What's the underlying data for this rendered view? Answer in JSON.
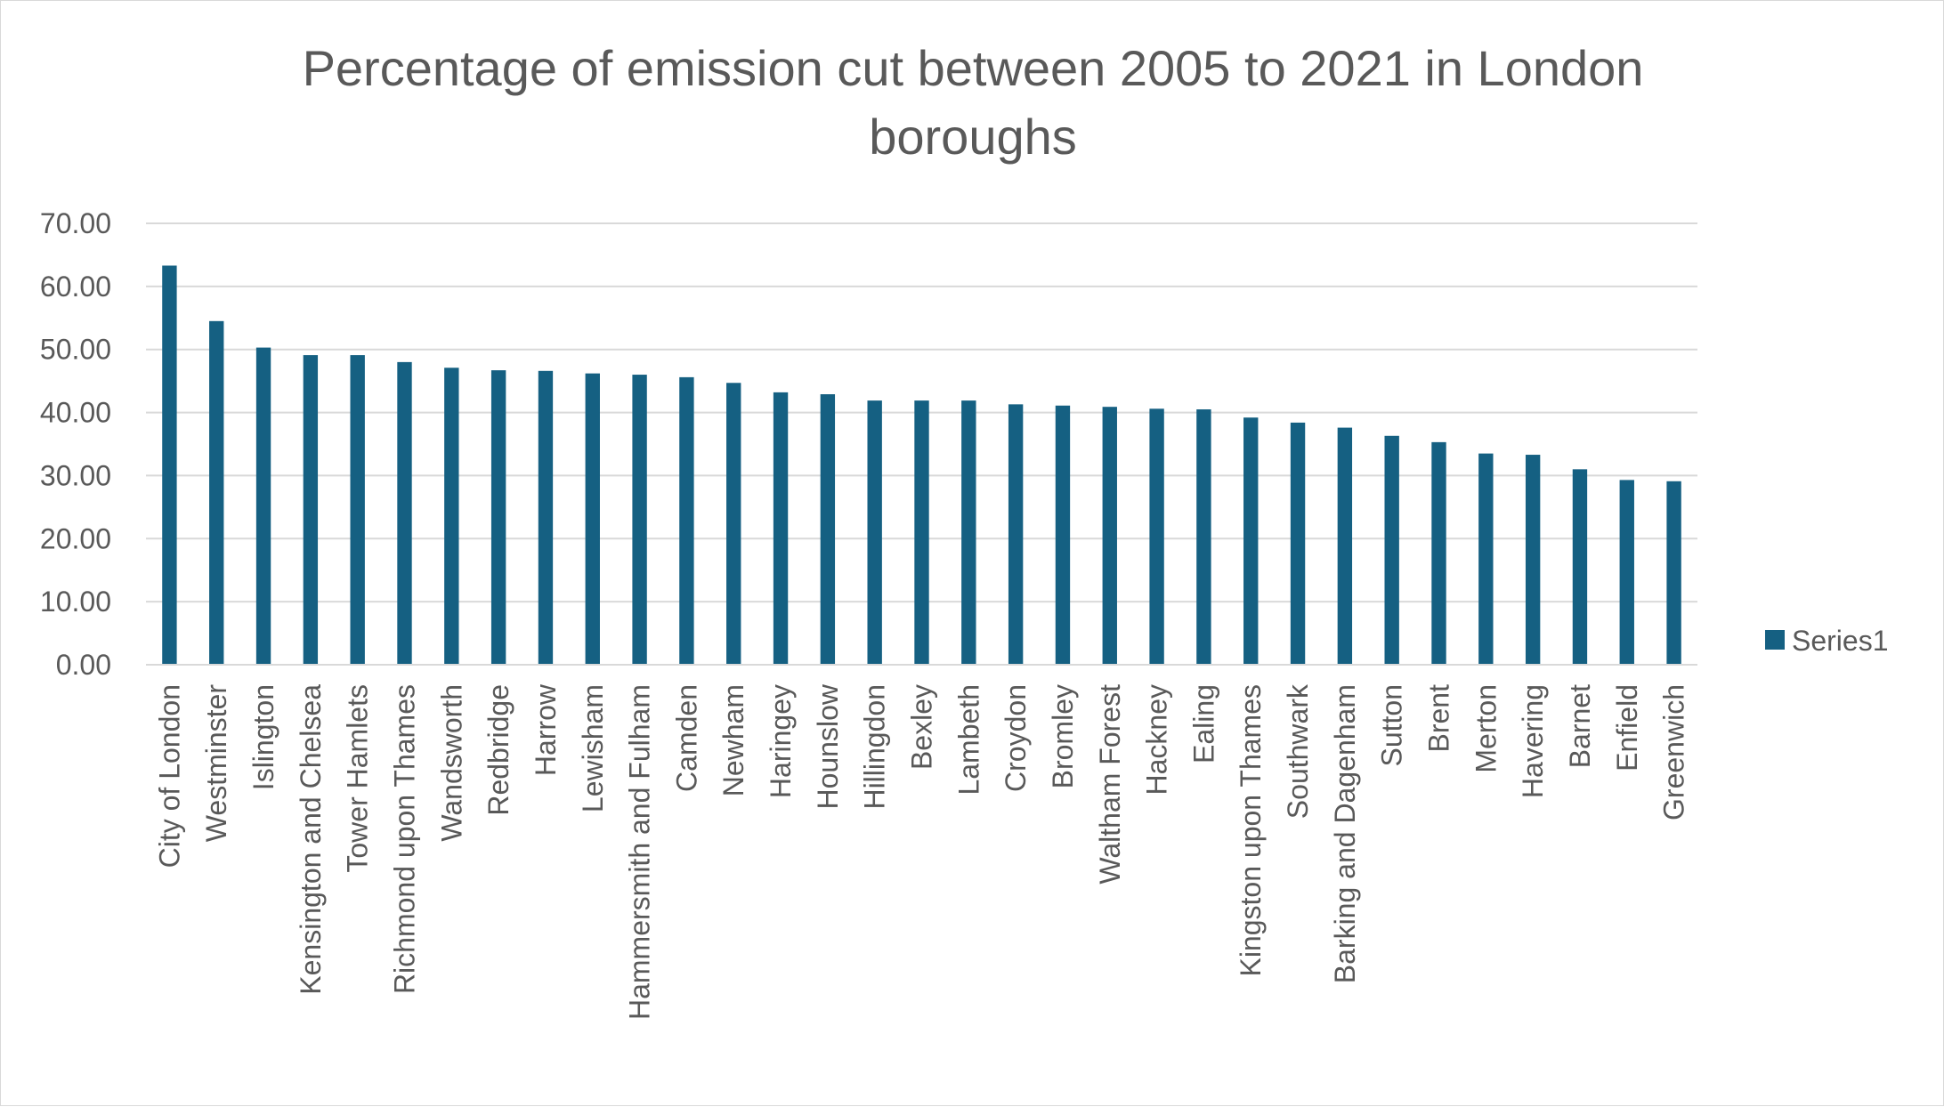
{
  "chart_data": {
    "type": "bar",
    "title": "Percentage of emission cut between 2005 to 2021 in London boroughs",
    "title_lines": [
      "Percentage of emission cut between 2005 to 2021 in London",
      "boroughs"
    ],
    "xlabel": "",
    "ylabel": "",
    "ylim": [
      0,
      70
    ],
    "yticks": [
      "0.00",
      "10.00",
      "20.00",
      "30.00",
      "40.00",
      "50.00",
      "60.00",
      "70.00"
    ],
    "grid": true,
    "legend_position": "right",
    "bar_color": "#156082",
    "grid_color": "#d9d9d9",
    "categories": [
      "City of London",
      "Westminster",
      "Islington",
      "Kensington and Chelsea",
      "Tower Hamlets",
      "Richmond upon Thames",
      "Wandsworth",
      "Redbridge",
      "Harrow",
      "Lewisham",
      "Hammersmith and Fulham",
      "Camden",
      "Newham",
      "Haringey",
      "Hounslow",
      "Hillingdon",
      "Bexley",
      "Lambeth",
      "Croydon",
      "Bromley",
      "Waltham Forest",
      "Hackney",
      "Ealing",
      "Kingston upon Thames",
      "Southwark",
      "Barking and Dagenham",
      "Sutton",
      "Brent",
      "Merton",
      "Havering",
      "Barnet",
      "Enfield",
      "Greenwich"
    ],
    "series": [
      {
        "name": "Series1",
        "values": [
          63.3,
          54.5,
          50.3,
          49.1,
          49.1,
          48.0,
          47.1,
          46.7,
          46.6,
          46.2,
          46.0,
          45.6,
          44.7,
          43.2,
          42.9,
          41.9,
          41.9,
          41.9,
          41.3,
          41.1,
          40.9,
          40.6,
          40.5,
          39.2,
          38.4,
          37.6,
          36.3,
          35.3,
          33.5,
          33.3,
          31.0,
          29.3,
          29.1
        ]
      }
    ]
  }
}
